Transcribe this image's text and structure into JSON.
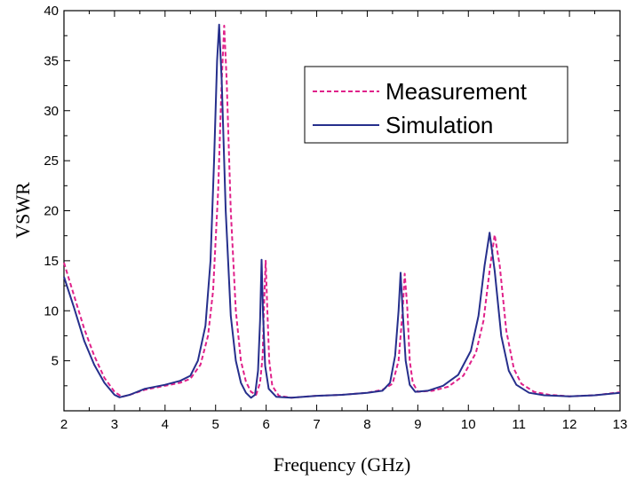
{
  "chart_data": {
    "type": "line",
    "title": "",
    "xlabel": "Frequency (GHz)",
    "ylabel": "VSWR",
    "xlim": [
      2,
      13
    ],
    "ylim": [
      0,
      40
    ],
    "x_ticks": [
      2,
      3,
      4,
      5,
      6,
      7,
      8,
      9,
      10,
      11,
      12,
      13
    ],
    "y_ticks": [
      5,
      10,
      15,
      20,
      25,
      30,
      35,
      40
    ],
    "legend_position": "top-right",
    "grid": false,
    "series": [
      {
        "name": "Measurement",
        "color": "#e0218a",
        "dash": "dashed",
        "points": [
          [
            2.0,
            14.8
          ],
          [
            2.2,
            11.5
          ],
          [
            2.4,
            8.2
          ],
          [
            2.6,
            5.5
          ],
          [
            2.8,
            3.3
          ],
          [
            3.0,
            1.9
          ],
          [
            3.15,
            1.4
          ],
          [
            3.3,
            1.6
          ],
          [
            3.6,
            2.1
          ],
          [
            4.0,
            2.5
          ],
          [
            4.3,
            2.8
          ],
          [
            4.5,
            3.2
          ],
          [
            4.7,
            4.6
          ],
          [
            4.85,
            7.5
          ],
          [
            4.95,
            12.0
          ],
          [
            5.05,
            22.0
          ],
          [
            5.12,
            33.0
          ],
          [
            5.17,
            38.5
          ],
          [
            5.22,
            33.0
          ],
          [
            5.3,
            20.0
          ],
          [
            5.4,
            10.0
          ],
          [
            5.5,
            5.0
          ],
          [
            5.6,
            2.9
          ],
          [
            5.7,
            1.9
          ],
          [
            5.8,
            1.6
          ],
          [
            5.88,
            2.8
          ],
          [
            5.93,
            5.5
          ],
          [
            5.96,
            11.0
          ],
          [
            5.99,
            15.0
          ],
          [
            6.02,
            10.5
          ],
          [
            6.06,
            5.0
          ],
          [
            6.12,
            2.5
          ],
          [
            6.25,
            1.5
          ],
          [
            6.5,
            1.3
          ],
          [
            7.0,
            1.5
          ],
          [
            7.5,
            1.6
          ],
          [
            8.0,
            1.8
          ],
          [
            8.3,
            2.1
          ],
          [
            8.5,
            2.7
          ],
          [
            8.62,
            5.0
          ],
          [
            8.7,
            10.0
          ],
          [
            8.74,
            13.7
          ],
          [
            8.79,
            10.5
          ],
          [
            8.84,
            5.0
          ],
          [
            8.9,
            2.8
          ],
          [
            9.0,
            1.9
          ],
          [
            9.3,
            2.0
          ],
          [
            9.6,
            2.4
          ],
          [
            9.9,
            3.5
          ],
          [
            10.15,
            5.8
          ],
          [
            10.3,
            9.0
          ],
          [
            10.42,
            14.0
          ],
          [
            10.52,
            17.6
          ],
          [
            10.62,
            14.5
          ],
          [
            10.75,
            8.0
          ],
          [
            10.9,
            4.2
          ],
          [
            11.05,
            2.7
          ],
          [
            11.3,
            1.9
          ],
          [
            11.6,
            1.6
          ],
          [
            12.0,
            1.45
          ],
          [
            12.5,
            1.55
          ],
          [
            13.0,
            1.85
          ]
        ]
      },
      {
        "name": "Simulation",
        "color": "#262f8c",
        "dash": "solid",
        "points": [
          [
            2.0,
            13.4
          ],
          [
            2.2,
            10.3
          ],
          [
            2.4,
            7.0
          ],
          [
            2.6,
            4.6
          ],
          [
            2.8,
            2.8
          ],
          [
            3.0,
            1.6
          ],
          [
            3.1,
            1.35
          ],
          [
            3.3,
            1.6
          ],
          [
            3.6,
            2.2
          ],
          [
            4.0,
            2.6
          ],
          [
            4.3,
            3.0
          ],
          [
            4.5,
            3.5
          ],
          [
            4.65,
            5.0
          ],
          [
            4.8,
            8.5
          ],
          [
            4.9,
            15.0
          ],
          [
            4.97,
            25.0
          ],
          [
            5.03,
            35.0
          ],
          [
            5.07,
            38.6
          ],
          [
            5.12,
            33.0
          ],
          [
            5.2,
            20.0
          ],
          [
            5.3,
            9.5
          ],
          [
            5.4,
            5.0
          ],
          [
            5.5,
            2.8
          ],
          [
            5.6,
            1.8
          ],
          [
            5.7,
            1.3
          ],
          [
            5.78,
            1.6
          ],
          [
            5.84,
            4.0
          ],
          [
            5.88,
            9.0
          ],
          [
            5.91,
            15.1
          ],
          [
            5.94,
            9.5
          ],
          [
            5.98,
            4.5
          ],
          [
            6.05,
            2.2
          ],
          [
            6.2,
            1.4
          ],
          [
            6.5,
            1.3
          ],
          [
            7.0,
            1.5
          ],
          [
            7.5,
            1.6
          ],
          [
            8.0,
            1.8
          ],
          [
            8.3,
            2.0
          ],
          [
            8.45,
            2.8
          ],
          [
            8.55,
            5.5
          ],
          [
            8.62,
            10.0
          ],
          [
            8.66,
            13.8
          ],
          [
            8.7,
            10.0
          ],
          [
            8.76,
            5.0
          ],
          [
            8.84,
            2.6
          ],
          [
            8.95,
            1.9
          ],
          [
            9.2,
            2.0
          ],
          [
            9.5,
            2.5
          ],
          [
            9.8,
            3.6
          ],
          [
            10.05,
            6.0
          ],
          [
            10.2,
            9.5
          ],
          [
            10.32,
            14.5
          ],
          [
            10.42,
            17.8
          ],
          [
            10.52,
            14.0
          ],
          [
            10.65,
            7.5
          ],
          [
            10.8,
            4.0
          ],
          [
            10.95,
            2.6
          ],
          [
            11.2,
            1.8
          ],
          [
            11.5,
            1.55
          ],
          [
            12.0,
            1.45
          ],
          [
            12.5,
            1.55
          ],
          [
            13.0,
            1.8
          ]
        ]
      }
    ]
  }
}
